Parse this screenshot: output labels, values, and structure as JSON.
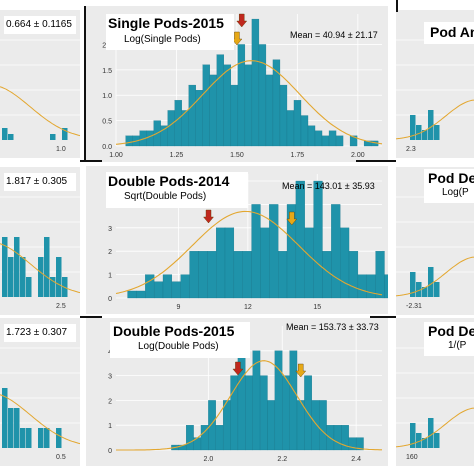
{
  "colors": {
    "bar": "#1f93aa",
    "bar_stroke": "#15758a",
    "curve": "#e3a730",
    "panel": "#ebebeb",
    "grid": "#ffffff",
    "arrow_red": "#c0281e",
    "arrow_gold": "#e6a817"
  },
  "chart_data": [
    {
      "id": "single-pods-2015",
      "type": "bar",
      "title": "Single Pods-2015",
      "subtitle": "Log(Single Pods)",
      "stats": "Mean = 40.94 ± 21.17",
      "xlim": [
        1.0,
        2.1
      ],
      "ylim": [
        0,
        2.6
      ],
      "xticks": [
        1.0,
        1.25,
        1.5,
        1.75,
        2.0
      ],
      "xtick_labels": [
        "1.00",
        "1.25",
        "1.50",
        "1.75",
        "2.00"
      ],
      "yticks": [
        0.0,
        0.5,
        1.0,
        1.5,
        2.0
      ],
      "ytick_labels": [
        "0.0",
        "0.5",
        "1.0",
        "1.5",
        "2.0"
      ],
      "bin_start": 1.04,
      "bin_width": 0.029,
      "values": [
        0.2,
        0.2,
        0.3,
        0.3,
        0.5,
        0.4,
        0.7,
        0.9,
        0.7,
        1.2,
        1.1,
        1.6,
        1.4,
        1.8,
        1.6,
        1.2,
        2.0,
        1.6,
        2.5,
        2.0,
        1.4,
        1.7,
        1.2,
        0.7,
        0.9,
        0.6,
        0.4,
        0.3,
        0.2,
        0.3,
        0.2,
        0.0,
        0.2,
        0.0,
        0.1,
        0.1
      ],
      "curve": {
        "mean": 1.56,
        "sd": 0.2,
        "peak": 1.68
      },
      "arrows": [
        {
          "color": "red",
          "x": 1.52
        },
        {
          "color": "gold",
          "x": 1.5
        }
      ]
    },
    {
      "id": "double-pods-2014",
      "type": "bar",
      "title": "Double Pods-2014",
      "subtitle": "Sqrt(Double Pods)",
      "stats": "Mean = 143.01 ± 35.93",
      "xlim": [
        6.3,
        17.8
      ],
      "ylim": [
        0,
        5.3
      ],
      "xticks": [
        9,
        12,
        15
      ],
      "xtick_labels": [
        "9",
        "12",
        "15"
      ],
      "yticks": [
        0,
        1,
        2,
        3,
        4,
        5
      ],
      "ytick_labels": [
        "0",
        "1",
        "2",
        "3",
        "4",
        "5"
      ],
      "bin_start": 6.8,
      "bin_width": 0.383,
      "values": [
        0.3,
        0.3,
        1.0,
        0.7,
        1.0,
        0.7,
        1.0,
        2.0,
        2.0,
        2.0,
        3.0,
        3.0,
        2.0,
        2.0,
        4.0,
        3.0,
        4.0,
        2.0,
        4.0,
        5.0,
        3.0,
        5.0,
        2.0,
        4.0,
        3.0,
        2.0,
        1.0,
        1.0,
        2.0,
        1.0
      ],
      "curve": {
        "mean": 11.9,
        "sd": 2.3,
        "peak": 3.7
      },
      "arrows": [
        {
          "color": "red",
          "x": 10.3
        },
        {
          "color": "gold",
          "x": 13.9
        }
      ]
    },
    {
      "id": "double-pods-2015",
      "type": "bar",
      "title": "Double Pods-2015",
      "subtitle": "Log(Double Pods)",
      "stats": "Mean = 153.73 ± 33.73",
      "xlim": [
        1.75,
        2.47
      ],
      "ylim": [
        0,
        5.0
      ],
      "xticks": [
        2.0,
        2.2,
        2.4
      ],
      "xtick_labels": [
        "2.0",
        "2.2",
        "2.4"
      ],
      "yticks": [
        0,
        1,
        2,
        3,
        4
      ],
      "ytick_labels": [
        "0",
        "1",
        "2",
        "3",
        "4"
      ],
      "bin_start": 1.9,
      "bin_width": 0.02,
      "values": [
        0.2,
        0.2,
        1.0,
        0.5,
        1.0,
        2.0,
        1.0,
        2.0,
        3.0,
        4.0,
        3.0,
        4.0,
        3.0,
        2.0,
        4.0,
        3.0,
        4.0,
        2.0,
        3.0,
        2.0,
        2.0,
        1.0,
        1.0,
        1.0,
        0.5,
        0.5
      ],
      "curve": {
        "mean": 2.15,
        "sd": 0.09,
        "peak": 3.6
      },
      "arrows": [
        {
          "color": "red",
          "x": 2.08
        },
        {
          "color": "gold",
          "x": 2.25
        }
      ]
    }
  ],
  "left_panels": [
    {
      "id": "left-top",
      "stats": "0.664 ± 0.1165",
      "xtick_labels": [
        "1.0"
      ],
      "values": [
        0.2,
        0.1,
        0.0,
        0.0,
        0.0,
        0.0,
        0.0,
        0.0,
        0.1,
        0.0,
        0.2
      ]
    },
    {
      "id": "left-middle",
      "stats": "1.817 ± 0.305",
      "xtick_labels": [
        "2.5"
      ],
      "values": [
        3,
        2,
        3,
        2,
        1,
        0,
        2,
        3,
        1,
        2,
        1
      ]
    },
    {
      "id": "left-bottom",
      "stats": "1.723 ± 0.307",
      "xtick_labels": [
        "0.5"
      ],
      "values": [
        3,
        2,
        2,
        1,
        1,
        0,
        1,
        1,
        0,
        1,
        0
      ]
    }
  ],
  "right_panels": [
    {
      "id": "right-top",
      "title": "Pod An",
      "xtick_labels": [
        "2.3"
      ]
    },
    {
      "id": "right-middle",
      "title": "Pod De",
      "subtitle": "Log(P",
      "xtick_labels": [
        "-2.31"
      ]
    },
    {
      "id": "right-bottom",
      "title": "Pod De",
      "subtitle": "1/(P",
      "xtick_labels": [
        "160"
      ]
    }
  ]
}
